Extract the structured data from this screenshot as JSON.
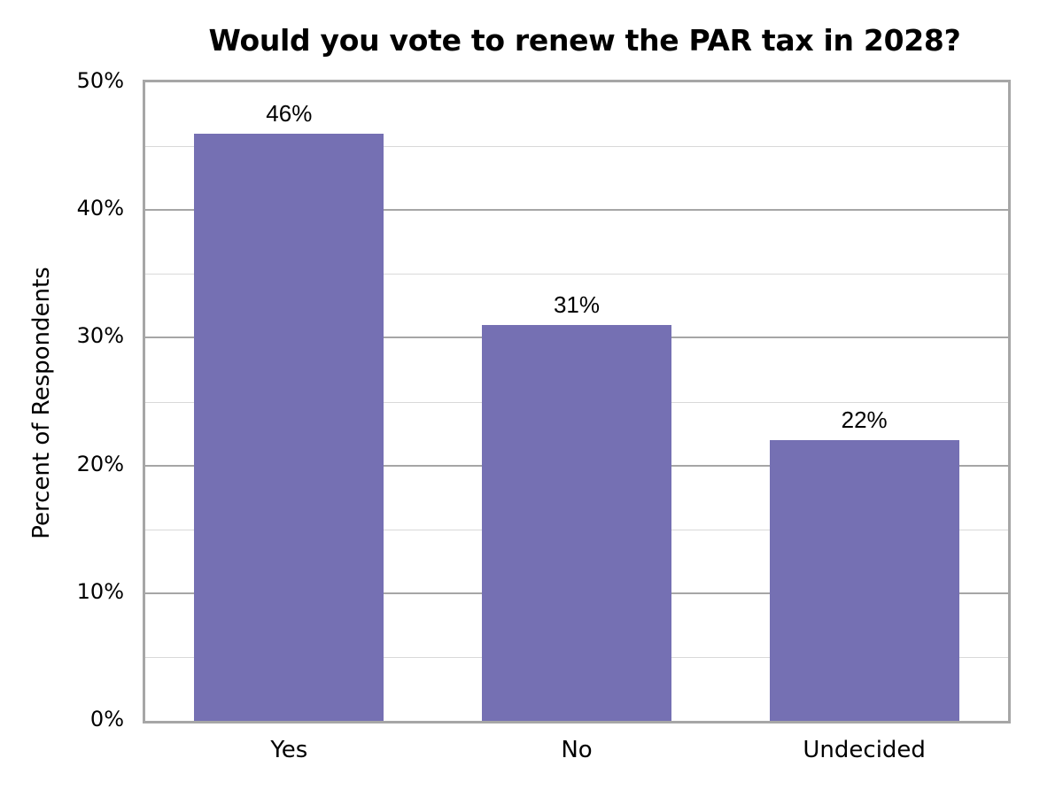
{
  "chart_data": {
    "type": "bar",
    "title": "Would you vote to renew the PAR tax in 2028?",
    "xlabel": "",
    "ylabel": "Percent of Respondents",
    "categories": [
      "Yes",
      "No",
      "Undecided"
    ],
    "values": [
      46,
      31,
      22
    ],
    "value_labels": [
      "46%",
      "31%",
      "22%"
    ],
    "ylim": [
      0,
      50
    ],
    "yticks": [
      "0%",
      "10%",
      "20%",
      "30%",
      "40%",
      "50%"
    ],
    "grid": {
      "major": true,
      "minor_step": 5
    },
    "legend": null,
    "bar_color": "#7570b3"
  }
}
